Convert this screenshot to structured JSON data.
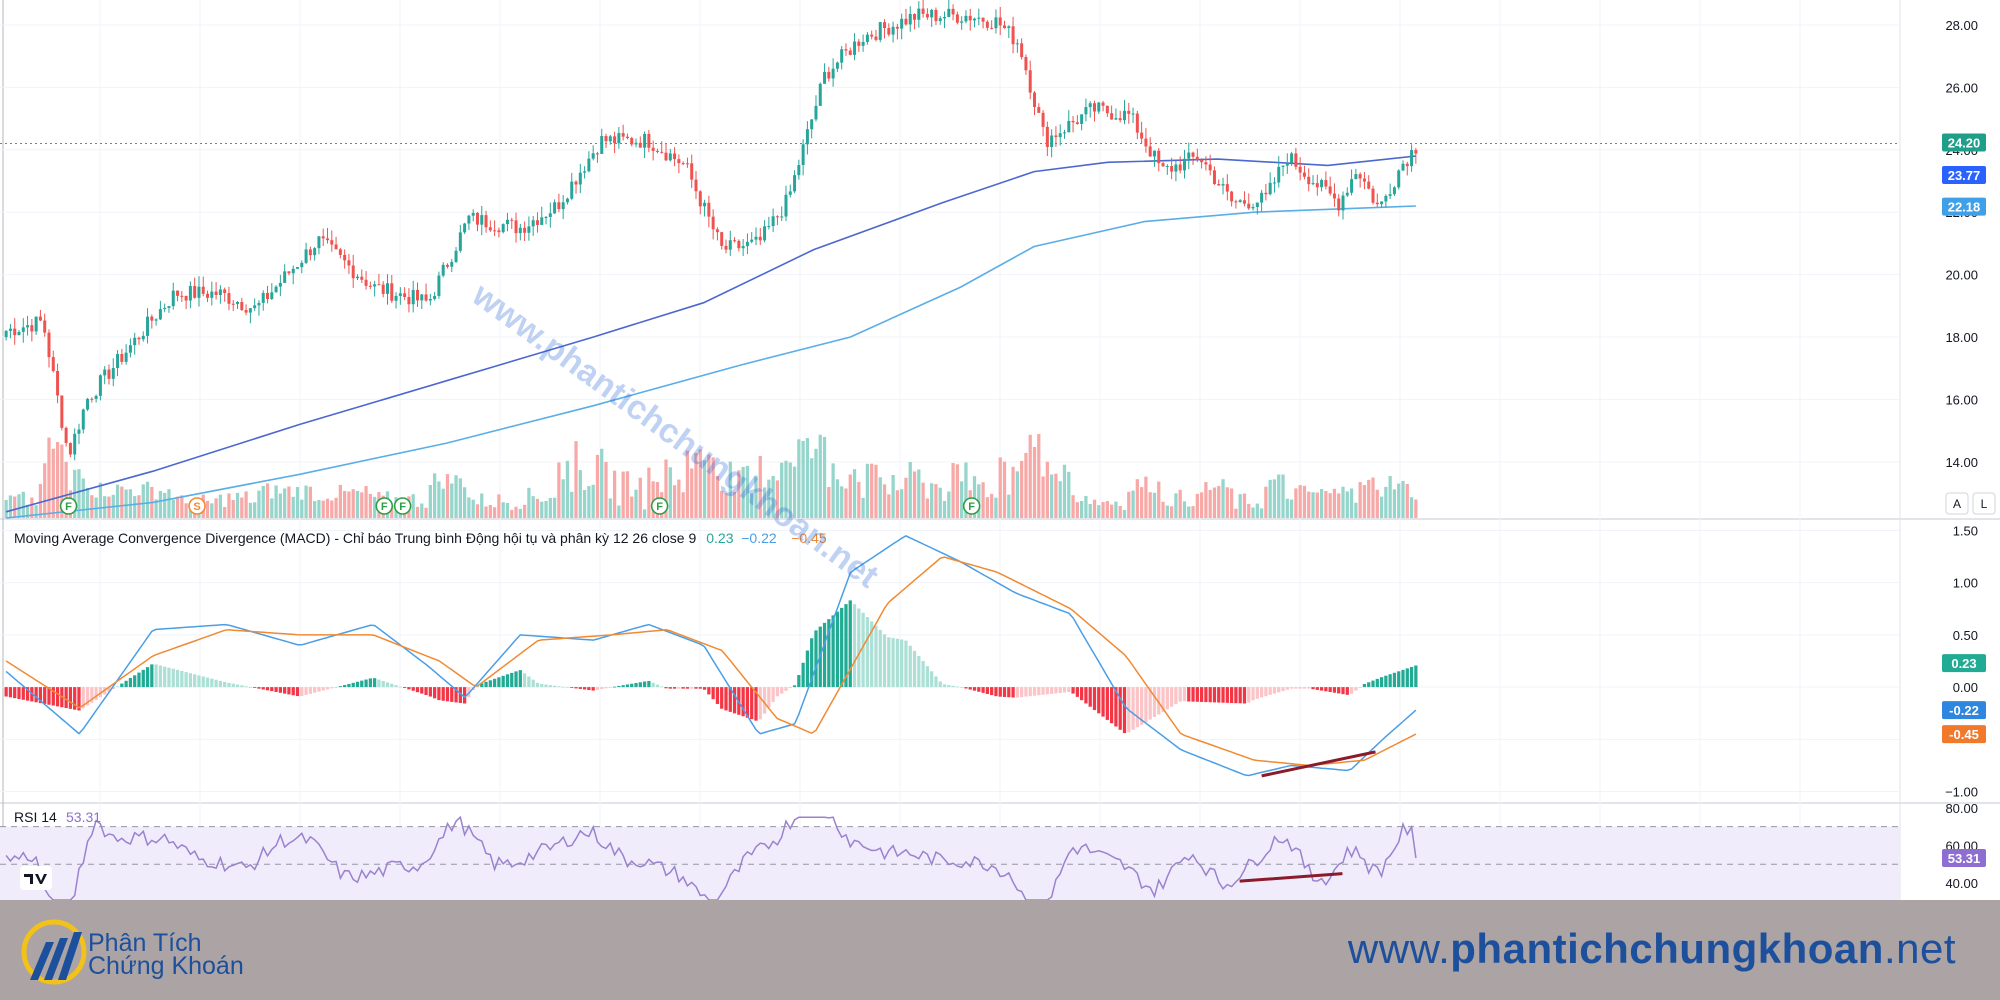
{
  "chart_data": [
    {
      "type": "candlestick",
      "panel": "price",
      "yticks": [
        14,
        16,
        18,
        20,
        22,
        24,
        26,
        28
      ],
      "ytick_labels": [
        "14.00",
        "16.00",
        "18.00",
        "20.00",
        "22.00",
        "24.00",
        "26.00",
        "28.00"
      ],
      "ylim": [
        12.2,
        28.8
      ],
      "last_price": "24.20",
      "ma_fast_value": "23.77",
      "ma_slow_value": "22.18",
      "markers": [
        {
          "bar": 17,
          "letter": "F"
        },
        {
          "bar": 52,
          "letter": "S"
        },
        {
          "bar": 103,
          "letter": "F"
        },
        {
          "bar": 108,
          "letter": "F"
        },
        {
          "bar": 178,
          "letter": "F"
        },
        {
          "bar": 263,
          "letter": "F"
        }
      ],
      "buttons": [
        "A",
        "L"
      ]
    },
    {
      "type": "line",
      "panel": "macd",
      "title": "Moving Average Convergence Divergence (MACD) - Chỉ báo Trung bình Động hội tụ và phân kỳ 12 26 close 9",
      "values": {
        "histogram": "0.23",
        "macd": "−0.22",
        "signal": "−0.45"
      },
      "badges": {
        "histogram": "0.23",
        "macd": "-0.22",
        "signal": "-0.45"
      },
      "yticks": [
        -1.0,
        -0.5,
        0,
        0.5,
        1.0,
        1.5
      ],
      "ytick_labels": [
        "−1.00",
        "",
        "0.00",
        "0.50",
        "1.00",
        "1.50"
      ],
      "ylim": [
        -1.1,
        1.6
      ]
    },
    {
      "type": "line",
      "panel": "rsi",
      "title": "RSI 14",
      "value": "53.31",
      "yticks": [
        40,
        60,
        80
      ],
      "ytick_labels": [
        "40.00",
        "60.00",
        "80.00"
      ],
      "ylim": [
        31,
        82
      ],
      "band": [
        30,
        70
      ]
    }
  ],
  "watermark": "www.phantichchungkhoan.net",
  "footer": {
    "brand_line1": "Phân Tích",
    "brand_line2": "Chứng Khoán",
    "url_prefix": "www.",
    "url_bold": "phantichchungkhoan",
    "url_suffix": ".net"
  },
  "colors": {
    "up": "#26a69a",
    "down": "#ef5350",
    "ma_fast": "#4a68cf",
    "ma_slow": "#5aaee6",
    "macd": "#4a9ee6",
    "signal": "#f08a32",
    "rsi": "#9a82cf"
  }
}
